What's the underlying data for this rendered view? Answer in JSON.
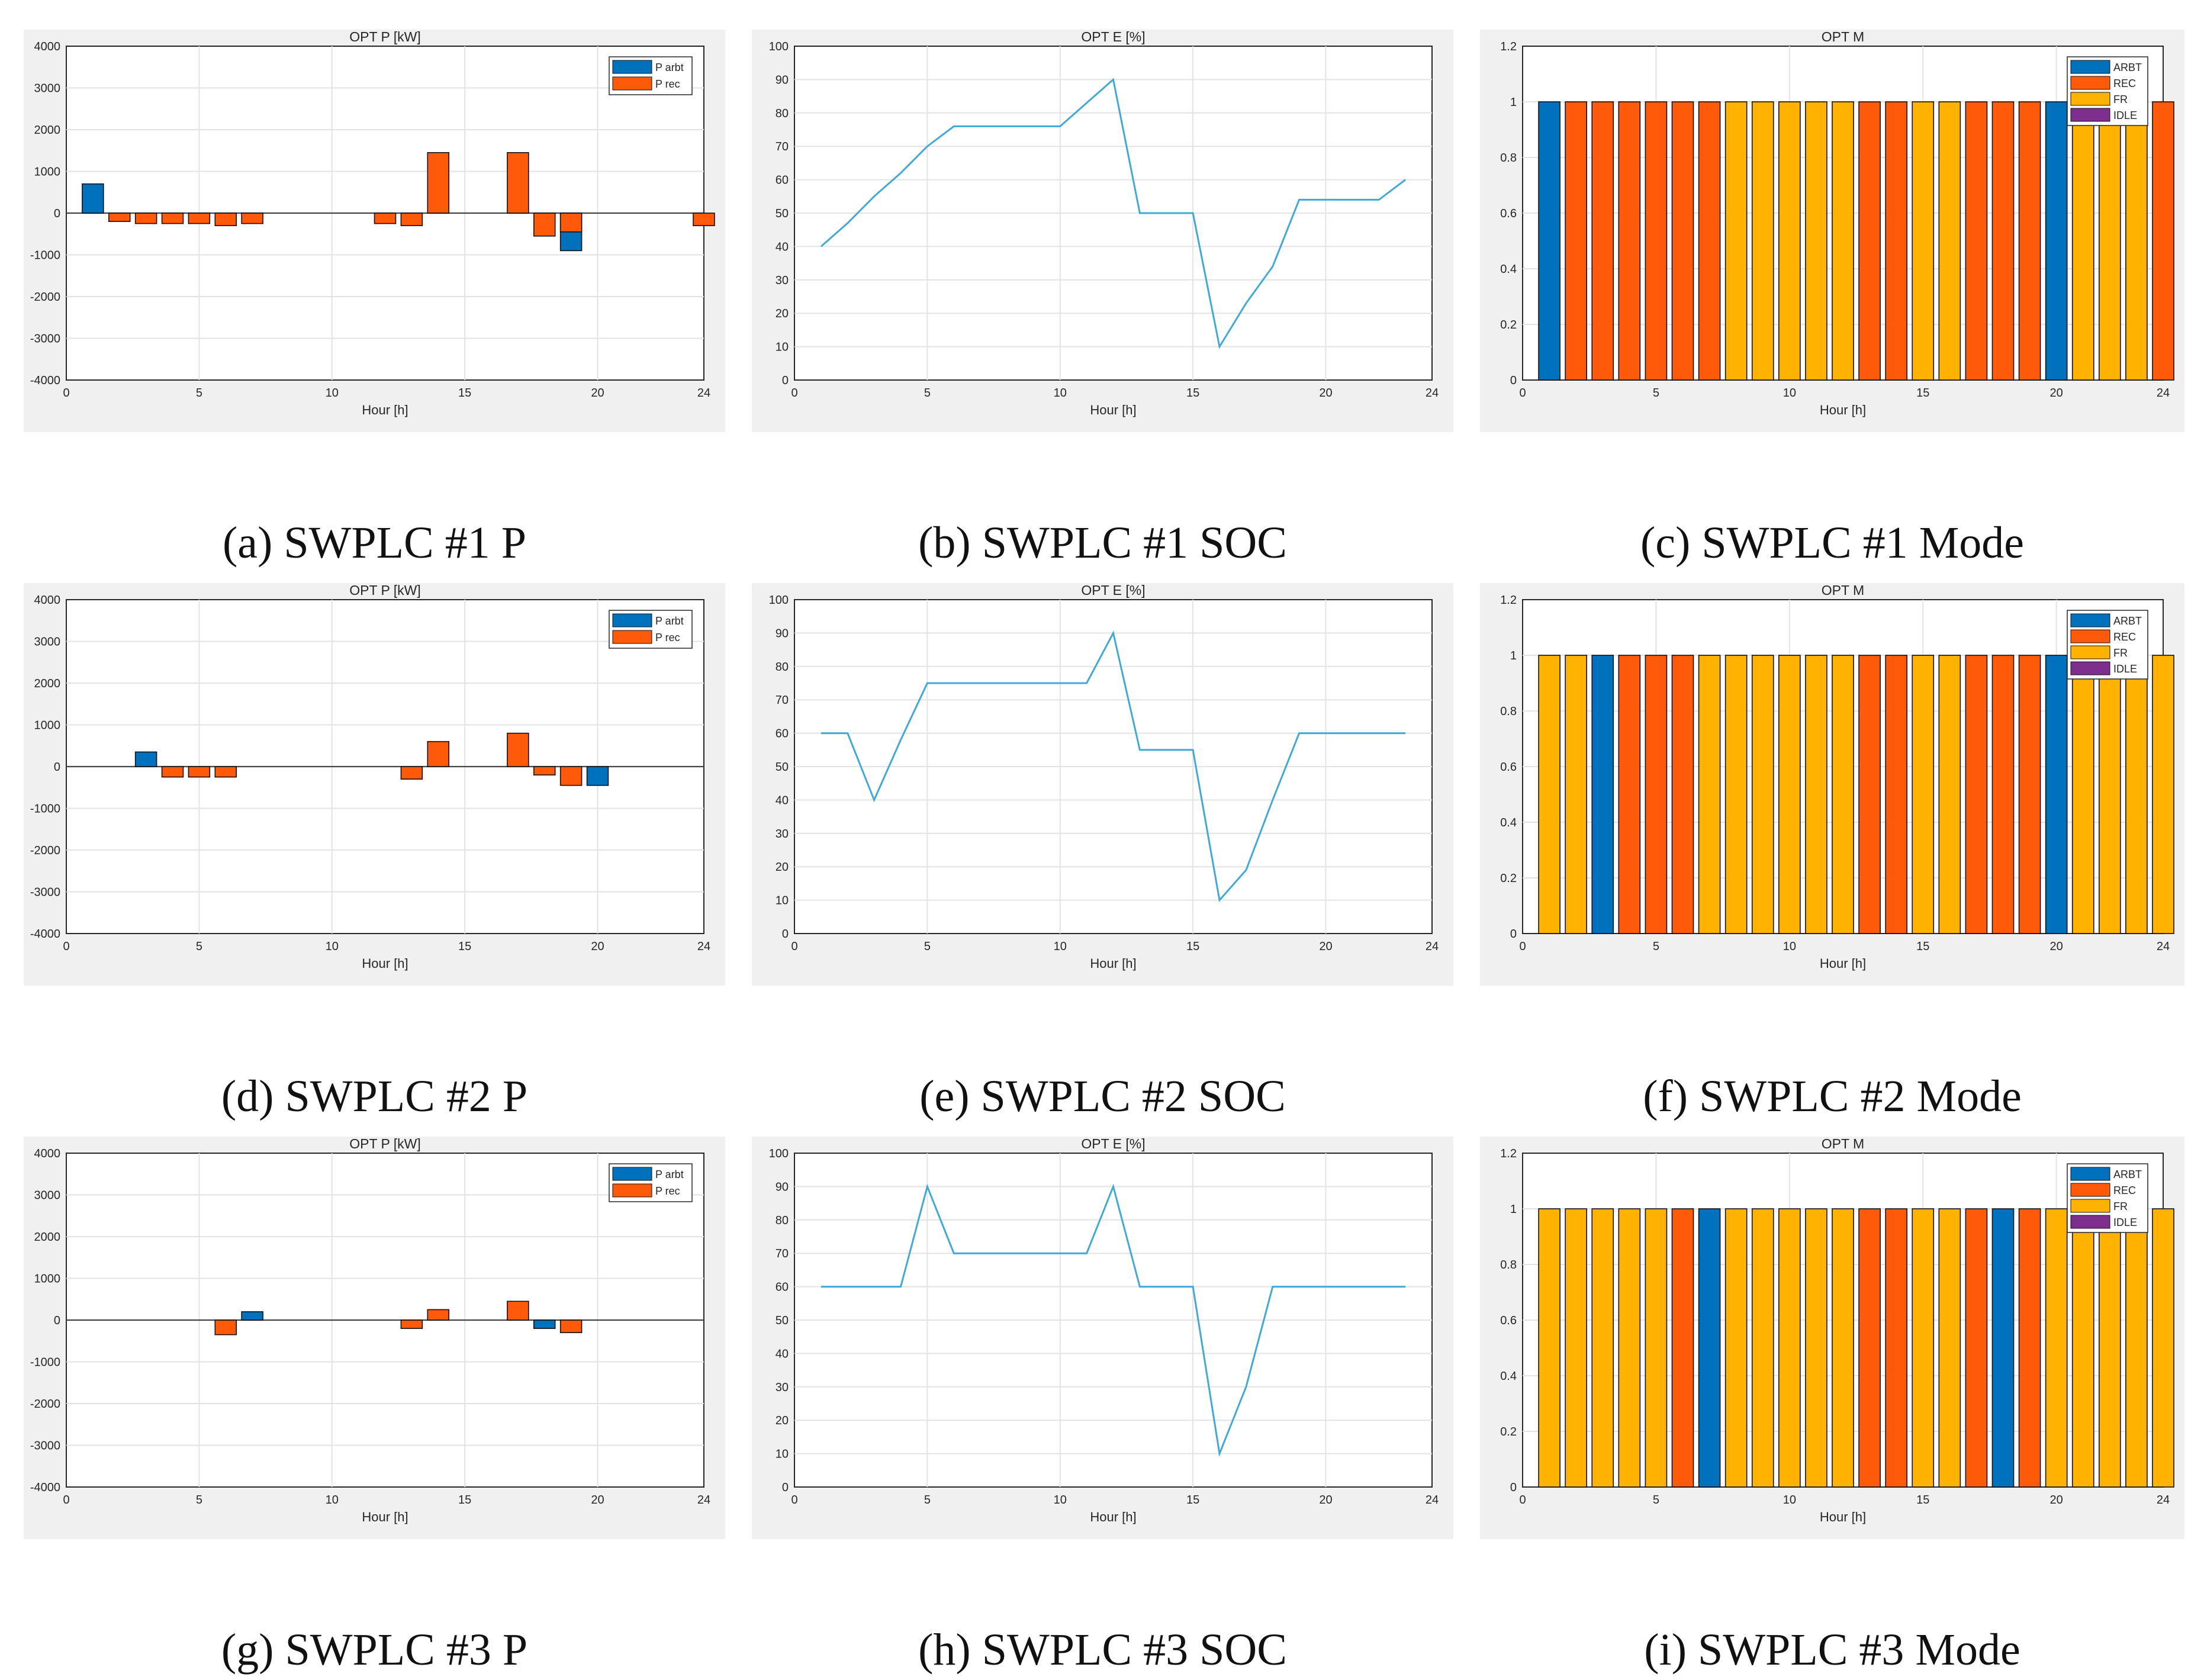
{
  "colors": {
    "arbt": "#0072bd",
    "rec": "#ff5a0a",
    "fr": "#ffb300",
    "idle": "#7e2f8e",
    "soc_line": "#3fa9d9"
  },
  "chart_data": [
    {
      "id": "p1",
      "type": "bar",
      "title": "OPT P [kW]",
      "xlabel": "Hour [h]",
      "ylabel": "",
      "xlim": [
        0,
        24
      ],
      "ylim": [
        -4000,
        4000
      ],
      "xticks": [
        "0",
        "5",
        "10",
        "15",
        "20",
        "24"
      ],
      "yticks": [
        "4000",
        "3000",
        "2000",
        "1000",
        "0",
        "-1000",
        "-2000",
        "-3000",
        "-4000"
      ],
      "x": [
        1,
        2,
        3,
        4,
        5,
        6,
        7,
        8,
        9,
        10,
        11,
        12,
        13,
        14,
        15,
        16,
        17,
        18,
        19,
        20,
        21,
        22,
        23,
        24
      ],
      "series": [
        {
          "name": "P arbt",
          "values": [
            700,
            0,
            0,
            0,
            0,
            0,
            0,
            0,
            0,
            0,
            0,
            0,
            0,
            0,
            0,
            0,
            0,
            0,
            -900,
            0,
            0,
            0,
            0,
            0
          ]
        },
        {
          "name": "P rec",
          "values": [
            0,
            -200,
            -250,
            -250,
            -250,
            -300,
            -250,
            0,
            0,
            0,
            0,
            -250,
            -300,
            1450,
            0,
            0,
            1450,
            -550,
            -450,
            0,
            0,
            0,
            0,
            -300
          ]
        }
      ],
      "legend": [
        "P arbt",
        "P rec"
      ],
      "caption": "(a) SWPLC #1 P"
    },
    {
      "id": "e1",
      "type": "line",
      "title": "OPT E [%]",
      "xlabel": "Hour [h]",
      "ylabel": "",
      "xlim": [
        0,
        24
      ],
      "ylim": [
        0,
        100
      ],
      "xticks": [
        "0",
        "5",
        "10",
        "15",
        "20",
        "24"
      ],
      "yticks": [
        "100",
        "90",
        "80",
        "70",
        "60",
        "50",
        "40",
        "30",
        "20",
        "10",
        "0"
      ],
      "x": [
        1,
        2,
        3,
        4,
        5,
        6,
        7,
        8,
        9,
        10,
        11,
        12,
        13,
        14,
        15,
        16,
        17,
        18,
        19,
        20,
        21,
        22,
        23
      ],
      "values": [
        40,
        47,
        55,
        62,
        70,
        76,
        76,
        76,
        76,
        76,
        83,
        90,
        50,
        50,
        50,
        10,
        23,
        34,
        54,
        54,
        54,
        54,
        60
      ],
      "caption": "(b) SWPLC #1 SOC"
    },
    {
      "id": "m1",
      "type": "bar",
      "title": "OPT M",
      "xlabel": "Hour [h]",
      "ylabel": "",
      "xlim": [
        0,
        24
      ],
      "ylim": [
        0,
        1.2
      ],
      "xticks": [
        "0",
        "5",
        "10",
        "15",
        "20",
        "24"
      ],
      "yticks": [
        "1.2",
        "1",
        "0.8",
        "0.6",
        "0.4",
        "0.2",
        "0"
      ],
      "x": [
        1,
        2,
        3,
        4,
        5,
        6,
        7,
        8,
        9,
        10,
        11,
        12,
        13,
        14,
        15,
        16,
        17,
        18,
        19,
        20,
        21,
        22,
        23,
        24
      ],
      "values": [
        1,
        1,
        1,
        1,
        1,
        1,
        1,
        1,
        1,
        1,
        1,
        1,
        1,
        1,
        1,
        1,
        1,
        1,
        1,
        1,
        1,
        1,
        1,
        1
      ],
      "modes": [
        "ARBT",
        "REC",
        "REC",
        "REC",
        "REC",
        "REC",
        "REC",
        "FR",
        "FR",
        "FR",
        "FR",
        "FR",
        "REC",
        "REC",
        "FR",
        "FR",
        "REC",
        "REC",
        "REC",
        "ARBT",
        "FR",
        "FR",
        "FR",
        "REC"
      ],
      "legend": [
        "ARBT",
        "REC",
        "FR",
        "IDLE"
      ],
      "caption": "(c) SWPLC #1 Mode"
    },
    {
      "id": "p2",
      "type": "bar",
      "title": "OPT P [kW]",
      "xlabel": "Hour [h]",
      "ylabel": "",
      "xlim": [
        0,
        24
      ],
      "ylim": [
        -4000,
        4000
      ],
      "xticks": [
        "0",
        "5",
        "10",
        "15",
        "20",
        "24"
      ],
      "yticks": [
        "4000",
        "3000",
        "2000",
        "1000",
        "0",
        "-1000",
        "-2000",
        "-3000",
        "-4000"
      ],
      "x": [
        1,
        2,
        3,
        4,
        5,
        6,
        7,
        8,
        9,
        10,
        11,
        12,
        13,
        14,
        15,
        16,
        17,
        18,
        19,
        20,
        21,
        22,
        23,
        24
      ],
      "series": [
        {
          "name": "P arbt",
          "values": [
            0,
            0,
            350,
            0,
            0,
            0,
            0,
            0,
            0,
            0,
            0,
            0,
            0,
            0,
            0,
            0,
            0,
            0,
            0,
            -450,
            0,
            0,
            0,
            0
          ]
        },
        {
          "name": "P rec",
          "values": [
            0,
            0,
            0,
            -250,
            -250,
            -250,
            0,
            0,
            0,
            0,
            0,
            0,
            -300,
            600,
            0,
            0,
            800,
            -200,
            -450,
            0,
            0,
            0,
            0,
            0
          ]
        }
      ],
      "legend": [
        "P arbt",
        "P rec"
      ],
      "caption": "(d) SWPLC #2 P"
    },
    {
      "id": "e2",
      "type": "line",
      "title": "OPT E [%]",
      "xlabel": "Hour [h]",
      "ylabel": "",
      "xlim": [
        0,
        24
      ],
      "ylim": [
        0,
        100
      ],
      "xticks": [
        "0",
        "5",
        "10",
        "15",
        "20",
        "24"
      ],
      "yticks": [
        "100",
        "90",
        "80",
        "70",
        "60",
        "50",
        "40",
        "30",
        "20",
        "10",
        "0"
      ],
      "x": [
        1,
        2,
        3,
        4,
        5,
        6,
        7,
        8,
        9,
        10,
        11,
        12,
        13,
        14,
        15,
        16,
        17,
        18,
        19,
        20,
        21,
        22,
        23
      ],
      "values": [
        60,
        60,
        40,
        58,
        75,
        75,
        75,
        75,
        75,
        75,
        75,
        90,
        55,
        55,
        55,
        10,
        19,
        40,
        60,
        60,
        60,
        60,
        60
      ],
      "caption": "(e) SWPLC #2 SOC"
    },
    {
      "id": "m2",
      "type": "bar",
      "title": "OPT M",
      "xlabel": "Hour [h]",
      "ylabel": "",
      "xlim": [
        0,
        24
      ],
      "ylim": [
        0,
        1.2
      ],
      "xticks": [
        "0",
        "5",
        "10",
        "15",
        "20",
        "24"
      ],
      "yticks": [
        "1.2",
        "1",
        "0.8",
        "0.6",
        "0.4",
        "0.2",
        "0"
      ],
      "x": [
        1,
        2,
        3,
        4,
        5,
        6,
        7,
        8,
        9,
        10,
        11,
        12,
        13,
        14,
        15,
        16,
        17,
        18,
        19,
        20,
        21,
        22,
        23,
        24
      ],
      "values": [
        1,
        1,
        1,
        1,
        1,
        1,
        1,
        1,
        1,
        1,
        1,
        1,
        1,
        1,
        1,
        1,
        1,
        1,
        1,
        1,
        1,
        1,
        1,
        1
      ],
      "modes": [
        "FR",
        "FR",
        "ARBT",
        "REC",
        "REC",
        "REC",
        "FR",
        "FR",
        "FR",
        "FR",
        "FR",
        "FR",
        "REC",
        "REC",
        "FR",
        "FR",
        "REC",
        "REC",
        "REC",
        "ARBT",
        "FR",
        "FR",
        "FR",
        "FR"
      ],
      "legend": [
        "ARBT",
        "REC",
        "FR",
        "IDLE"
      ],
      "caption": "(f) SWPLC #2 Mode"
    },
    {
      "id": "p3",
      "type": "bar",
      "title": "OPT P [kW]",
      "xlabel": "Hour [h]",
      "ylabel": "",
      "xlim": [
        0,
        24
      ],
      "ylim": [
        -4000,
        4000
      ],
      "xticks": [
        "0",
        "5",
        "10",
        "15",
        "20",
        "24"
      ],
      "yticks": [
        "4000",
        "3000",
        "2000",
        "1000",
        "0",
        "-1000",
        "-2000",
        "-3000",
        "-4000"
      ],
      "x": [
        1,
        2,
        3,
        4,
        5,
        6,
        7,
        8,
        9,
        10,
        11,
        12,
        13,
        14,
        15,
        16,
        17,
        18,
        19,
        20,
        21,
        22,
        23,
        24
      ],
      "series": [
        {
          "name": "P arbt",
          "values": [
            0,
            0,
            0,
            0,
            0,
            0,
            200,
            0,
            0,
            0,
            0,
            0,
            0,
            0,
            0,
            0,
            0,
            -200,
            0,
            0,
            0,
            0,
            0,
            0
          ]
        },
        {
          "name": "P rec",
          "values": [
            0,
            0,
            0,
            0,
            0,
            -350,
            0,
            0,
            0,
            0,
            0,
            0,
            -200,
            250,
            0,
            0,
            450,
            0,
            -300,
            0,
            0,
            0,
            0,
            0
          ]
        }
      ],
      "legend": [
        "P arbt",
        "P rec"
      ],
      "caption": "(g) SWPLC #3 P"
    },
    {
      "id": "e3",
      "type": "line",
      "title": "OPT E [%]",
      "xlabel": "Hour [h]",
      "ylabel": "",
      "xlim": [
        0,
        24
      ],
      "ylim": [
        0,
        100
      ],
      "xticks": [
        "0",
        "5",
        "10",
        "15",
        "20",
        "24"
      ],
      "yticks": [
        "100",
        "90",
        "80",
        "70",
        "60",
        "50",
        "40",
        "30",
        "20",
        "10",
        "0"
      ],
      "x": [
        1,
        2,
        3,
        4,
        5,
        6,
        7,
        8,
        9,
        10,
        11,
        12,
        13,
        14,
        15,
        16,
        17,
        18,
        19,
        20,
        21,
        22,
        23
      ],
      "values": [
        60,
        60,
        60,
        60,
        90,
        70,
        70,
        70,
        70,
        70,
        70,
        90,
        60,
        60,
        60,
        10,
        30,
        60,
        60,
        60,
        60,
        60,
        60
      ],
      "caption": "(h) SWPLC #3 SOC"
    },
    {
      "id": "m3",
      "type": "bar",
      "title": "OPT M",
      "xlabel": "Hour [h]",
      "ylabel": "",
      "xlim": [
        0,
        24
      ],
      "ylim": [
        0,
        1.2
      ],
      "xticks": [
        "0",
        "5",
        "10",
        "15",
        "20",
        "24"
      ],
      "yticks": [
        "1.2",
        "1",
        "0.8",
        "0.6",
        "0.4",
        "0.2",
        "0"
      ],
      "x": [
        1,
        2,
        3,
        4,
        5,
        6,
        7,
        8,
        9,
        10,
        11,
        12,
        13,
        14,
        15,
        16,
        17,
        18,
        19,
        20,
        21,
        22,
        23,
        24
      ],
      "values": [
        1,
        1,
        1,
        1,
        1,
        1,
        1,
        1,
        1,
        1,
        1,
        1,
        1,
        1,
        1,
        1,
        1,
        1,
        1,
        1,
        1,
        1,
        1,
        1
      ],
      "modes": [
        "FR",
        "FR",
        "FR",
        "FR",
        "FR",
        "REC",
        "ARBT",
        "FR",
        "FR",
        "FR",
        "FR",
        "FR",
        "REC",
        "REC",
        "FR",
        "FR",
        "REC",
        "ARBT",
        "REC",
        "FR",
        "FR",
        "FR",
        "FR",
        "FR"
      ],
      "legend": [
        "ARBT",
        "REC",
        "FR",
        "IDLE"
      ],
      "caption": "(i) SWPLC #3 Mode"
    }
  ]
}
